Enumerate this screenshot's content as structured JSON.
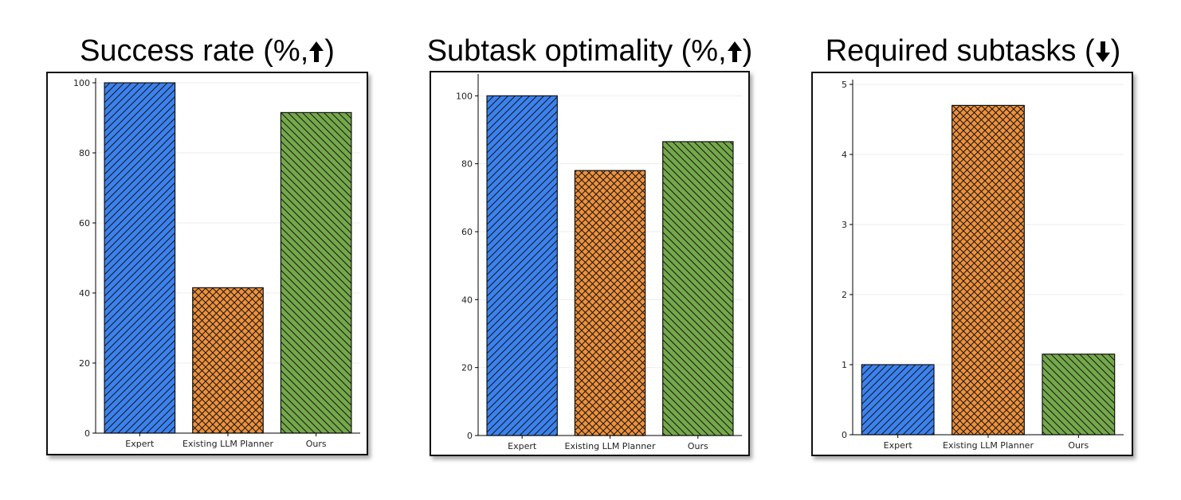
{
  "colors": {
    "expert": "#3b82f0",
    "llm_planner": "#f0913a",
    "ours": "#74a94a",
    "hatch": "#1a1a1a"
  },
  "panels": [
    {
      "title": "Success rate (%,",
      "arrow": "up-arrow-icon"
    },
    {
      "title": "Subtask optimality (%,",
      "arrow": "up-arrow-icon"
    },
    {
      "title": "Required subtasks (",
      "arrow": "down-arrow-icon"
    }
  ],
  "chart_data": [
    {
      "type": "bar",
      "title": "Success rate (%,↑)",
      "categories": [
        "Expert",
        "Existing LLM Planner",
        "Ours"
      ],
      "values": [
        100,
        41.5,
        91.5
      ],
      "yticks": [
        "0",
        "20",
        "40",
        "60",
        "80",
        "100"
      ],
      "ytick_values": [
        0,
        20,
        40,
        60,
        80,
        100
      ],
      "ylim": [
        0,
        100
      ],
      "xlabel": "",
      "ylabel": ""
    },
    {
      "type": "bar",
      "title": "Subtask optimality (%,↑)",
      "categories": [
        "Expert",
        "Existing LLM Planner",
        "Ours"
      ],
      "values": [
        100,
        78,
        86.5
      ],
      "yticks": [
        "0",
        "20",
        "40",
        "60",
        "80",
        "100"
      ],
      "ytick_values": [
        0,
        20,
        40,
        60,
        80,
        100
      ],
      "ylim": [
        0,
        105
      ],
      "xlabel": "",
      "ylabel": ""
    },
    {
      "type": "bar",
      "title": "Required subtasks (↓)",
      "categories": [
        "Expert",
        "Existing LLM Planner",
        "Ours"
      ],
      "values": [
        1.0,
        4.7,
        1.15
      ],
      "yticks": [
        "0",
        "1",
        "2",
        "3",
        "4",
        "5"
      ],
      "ytick_values": [
        0,
        1,
        2,
        3,
        4,
        5
      ],
      "ylim": [
        0,
        5
      ],
      "xlabel": "",
      "ylabel": ""
    }
  ]
}
